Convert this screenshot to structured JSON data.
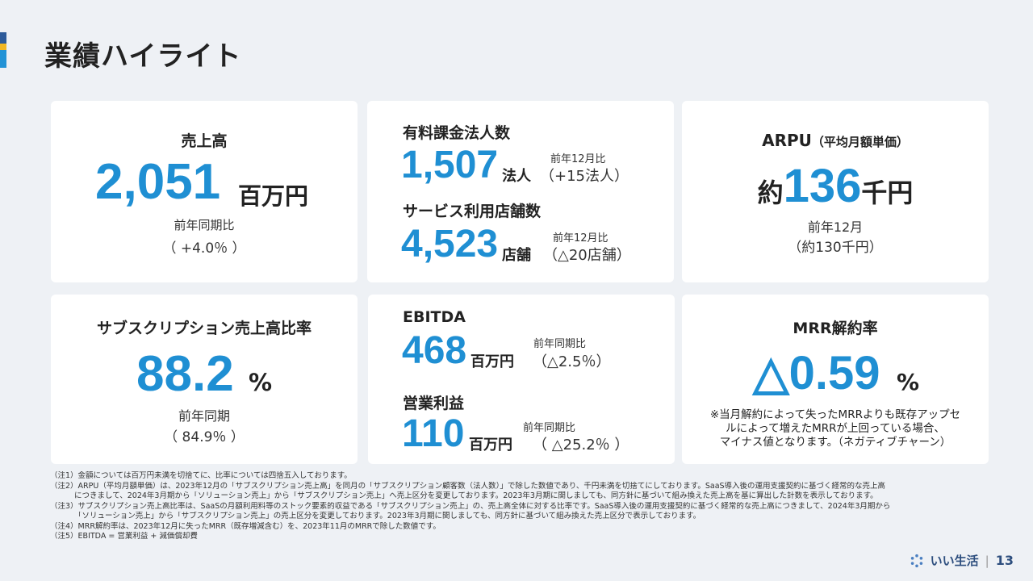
{
  "page": {
    "title": "業績ハイライト"
  },
  "card1": {
    "title": "売上高",
    "value": "2,051",
    "unit": "百万円",
    "compare_label": "前年同期比",
    "compare_value": "（ +4.0％ ）"
  },
  "card2": {
    "item1": {
      "title": "有料課金法人数",
      "value": "1,507",
      "unit": "法人",
      "compare_label": "前年12月比",
      "compare_value": "（+15法人）"
    },
    "item2": {
      "title": "サービス利用店舗数",
      "value": "4,523",
      "unit": "店舗",
      "compare_label": "前年12月比",
      "compare_value": "（△20店舗）"
    }
  },
  "card3": {
    "title": "ARPU",
    "title_paren": "（平均月額単価）",
    "prefix": "約",
    "value": "136",
    "unit": "千円",
    "compare_label": "前年12月",
    "compare_value": "（約130千円）"
  },
  "card4": {
    "title": "サブスクリプション売上高比率",
    "value": "88.2",
    "unit": "%",
    "compare_label": "前年同期",
    "compare_value": "（ 84.9％ ）"
  },
  "card5": {
    "item1": {
      "title": "EBITDA",
      "value": "468",
      "unit": "百万円",
      "compare_label": "前年同期比",
      "compare_value": "（△2.5％）"
    },
    "item2": {
      "title": "営業利益",
      "value": "110",
      "unit": "百万円",
      "compare_label": "前年同期比",
      "compare_value": "（ △25.2％ ）"
    }
  },
  "card6": {
    "title": "MRR解約率",
    "value": "△0.59",
    "unit": "%",
    "note_lines": [
      "※当月解約によって失ったMRRよりも既存アップセ",
      "ルによって増えたMRRが上回っている場合、",
      "マイナス値となります。（ネガティブチャーン）"
    ]
  },
  "notes": [
    "（注1）金額については百万円未満を切捨てに、比率については四捨五入しております。",
    "（注2）ARPU（平均月額単価）は、2023年12月の「サブスクリプション売上高」を同月の「サブスクリプション顧客数（法人数）」で除した数値であり、千円未満を切捨てにしております。SaaS導入後の運用支援契約に基づく経常的な売上高",
    "につきまして、2024年3月期から「ソリューション売上」から「サブスクリプション売上」へ売上区分を変更しております。2023年3月期に関しましても、同方針に基づいて組み換えた売上高を基に算出した計数を表示しております。",
    "（注3）サブスクリプション売上高比率は、SaaSの月額利用料等のストック要素的収益である「サブスクリプション売上」の、売上高全体に対する比率です。SaaS導入後の運用支援契約に基づく経常的な売上高につきまして、2024年3月期から",
    "「ソリューション売上」から「サブスクリプション売上」の売上区分を変更しております。2023年3月期に関しましても、同方針に基づいて組み換えた売上区分で表示しております。",
    "（注4）MRR解約率は、2023年12月に失ったMRR（既存増減含む）を、2023年11月のMRRで除した数値です。",
    "（注5）EBITDA = 営業利益 + 減価償却費"
  ],
  "footer": {
    "brand": "いい生活",
    "page_number": "13"
  },
  "colors": {
    "accent_blue": "#1f8fd3",
    "accent_navy": "#2d5b9a",
    "accent_yellow": "#f2b824",
    "background": "#eef1f5"
  },
  "icons": {
    "logo": "iisei-logo-icon"
  }
}
